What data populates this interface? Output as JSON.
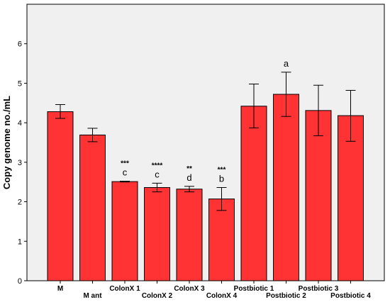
{
  "chart_data": {
    "type": "bar",
    "title": "",
    "xlabel": "",
    "ylabel": "Copy genome no./mL",
    "ylim": [
      0,
      7
    ],
    "yticks": [
      0,
      1,
      2,
      3,
      4,
      5,
      6
    ],
    "grid": false,
    "categories": [
      "M",
      "M ant",
      "ColonX 1",
      "ColonX 2",
      "ColonX 3",
      "ColonX 4",
      "Postbiotic 1",
      "Postbiotic 2",
      "Postbiotic 3",
      "Postbiotic 4"
    ],
    "values": [
      4.28,
      3.69,
      2.51,
      2.36,
      2.32,
      2.07,
      4.42,
      4.72,
      4.31,
      4.18
    ],
    "error_low": [
      4.11,
      3.52,
      2.5,
      2.25,
      2.25,
      1.78,
      3.87,
      4.16,
      3.67,
      3.53
    ],
    "error_high": [
      4.46,
      3.86,
      2.52,
      2.47,
      2.39,
      2.36,
      4.98,
      5.28,
      4.95,
      4.82
    ],
    "significance": [
      "",
      "",
      "***",
      "****",
      "**",
      "***",
      "",
      "",
      "",
      ""
    ],
    "letters": [
      "",
      "",
      "c",
      "c",
      "d",
      "b",
      "",
      "a",
      "",
      ""
    ],
    "colors": {
      "bar_fill": "#ff3333",
      "bar_stroke": "#000000",
      "plot_background": "#f0f0f0"
    }
  }
}
